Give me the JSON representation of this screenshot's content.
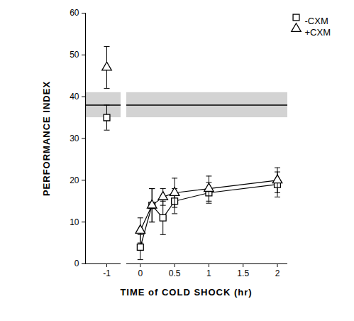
{
  "chart_data": {
    "type": "line",
    "x_label": "TIME of COLD SHOCK (hr)",
    "y_label": "PERFORMANCE INDEX",
    "xlim": [
      [
        -1.3,
        -0.8
      ],
      [
        -0.2,
        2.15
      ]
    ],
    "xticks": [
      [
        -1
      ],
      [
        0,
        0.5,
        1,
        1.5,
        2
      ]
    ],
    "ylim": [
      0,
      60
    ],
    "yticks": [
      0,
      10,
      20,
      30,
      40,
      50,
      60
    ],
    "x": [
      -1,
      0,
      0.17,
      0.33,
      0.5,
      1,
      2
    ],
    "series": [
      {
        "name": "-CXM",
        "color": "#000000",
        "marker": "square",
        "line_style": "solid",
        "values": [
          35,
          4,
          14,
          11,
          15,
          17,
          19
        ],
        "error": [
          3,
          3,
          4,
          4,
          3,
          2.5,
          3
        ]
      },
      {
        "name": "+CXM",
        "color": "#000000",
        "marker": "triangle",
        "line_style": "solid",
        "values": [
          47,
          8,
          14,
          16,
          17,
          18,
          20
        ],
        "error": [
          5,
          3,
          4,
          2,
          3.5,
          3,
          3
        ]
      }
    ],
    "reference": {
      "value": 38,
      "band": [
        35,
        41
      ]
    },
    "legend": "top-right"
  }
}
